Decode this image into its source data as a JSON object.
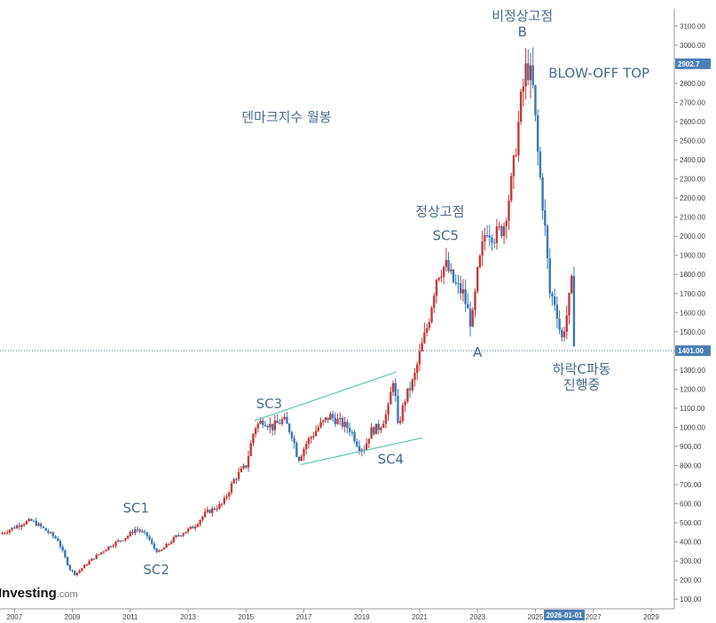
{
  "watermark": {
    "brand": "Investing",
    "suffix": ".com"
  },
  "chart_data": {
    "type": "candlestick",
    "x_axis": {
      "range": [
        2006.5,
        2029.8
      ],
      "ticks": [
        "2007",
        "2009",
        "2011",
        "2013",
        "2015",
        "2017",
        "2019",
        "2021",
        "2023",
        "2025",
        "2027",
        "2029"
      ],
      "tick_years": [
        2007,
        2009,
        2011,
        2013,
        2015,
        2017,
        2019,
        2021,
        2023,
        2025,
        2027,
        2029
      ]
    },
    "y_axis": {
      "position": "right",
      "range": [
        50,
        3190
      ],
      "ticks": [
        "100.00",
        "200.00",
        "300.00",
        "400.00",
        "500.00",
        "600.00",
        "700.00",
        "800.00",
        "900.00",
        "1000.00",
        "1100.00",
        "1200.00",
        "1300.00",
        "1400.00",
        "1500.00",
        "1600.00",
        "1700.00",
        "1800.00",
        "1900.00",
        "2000.00",
        "2100.00",
        "2200.00",
        "2300.00",
        "2400.00",
        "2500.00",
        "2600.00",
        "2700.00",
        "2800.00",
        "2900.00",
        "3000.00",
        "3100.00"
      ],
      "tick_values": [
        100,
        200,
        300,
        400,
        500,
        600,
        700,
        800,
        900,
        1000,
        1100,
        1200,
        1300,
        1400,
        1500,
        1600,
        1700,
        1800,
        1900,
        2000,
        2100,
        2200,
        2300,
        2400,
        2500,
        2600,
        2700,
        2800,
        2900,
        3000,
        3100
      ]
    },
    "current_price": {
      "value": 1401.0,
      "label": "1401.00"
    },
    "peak_label": {
      "value": 2902.7,
      "label": "2902.7"
    },
    "current_date_label": "2026-01-01",
    "series_colors": {
      "up": "#c23a3a",
      "down": "#3a78b5",
      "trend": "#5fc3b0",
      "price_line": "#4a6a8a"
    },
    "price_path": [
      [
        2006.5,
        440
      ],
      [
        2007.3,
        500
      ],
      [
        2007.6,
        510
      ],
      [
        2008.0,
        470
      ],
      [
        2008.5,
        410
      ],
      [
        2008.9,
        260
      ],
      [
        2009.1,
        230
      ],
      [
        2009.6,
        300
      ],
      [
        2010.3,
        380
      ],
      [
        2010.9,
        430
      ],
      [
        2011.2,
        470
      ],
      [
        2011.6,
        430
      ],
      [
        2011.8,
        370
      ],
      [
        2012.0,
        345
      ],
      [
        2012.6,
        430
      ],
      [
        2013.2,
        480
      ],
      [
        2013.6,
        550
      ],
      [
        2014.2,
        600
      ],
      [
        2014.6,
        730
      ],
      [
        2015.0,
        800
      ],
      [
        2015.3,
        1000
      ],
      [
        2015.6,
        1040
      ],
      [
        2015.9,
        1000
      ],
      [
        2016.3,
        1040
      ],
      [
        2016.6,
        960
      ],
      [
        2016.8,
        830
      ],
      [
        2017.1,
        920
      ],
      [
        2017.5,
        1000
      ],
      [
        2017.9,
        1060
      ],
      [
        2018.3,
        1020
      ],
      [
        2018.6,
        990
      ],
      [
        2018.9,
        900
      ],
      [
        2019.1,
        890
      ],
      [
        2019.3,
        980
      ],
      [
        2019.6,
        1000
      ],
      [
        2019.9,
        1080
      ],
      [
        2020.1,
        1270
      ],
      [
        2020.25,
        1000
      ],
      [
        2020.5,
        1150
      ],
      [
        2020.8,
        1250
      ],
      [
        2021.0,
        1380
      ],
      [
        2021.3,
        1550
      ],
      [
        2021.6,
        1800
      ],
      [
        2021.9,
        1850
      ],
      [
        2022.2,
        1750
      ],
      [
        2022.5,
        1700
      ],
      [
        2022.8,
        1530
      ],
      [
        2023.0,
        1800
      ],
      [
        2023.3,
        2050
      ],
      [
        2023.6,
        2000
      ],
      [
        2023.9,
        2050
      ],
      [
        2024.2,
        2300
      ],
      [
        2024.5,
        2700
      ],
      [
        2024.7,
        2900
      ],
      [
        2024.9,
        2800
      ],
      [
        2025.1,
        2400
      ],
      [
        2025.3,
        2100
      ],
      [
        2025.5,
        1700
      ],
      [
        2025.7,
        1650
      ],
      [
        2025.9,
        1450
      ],
      [
        2026.1,
        1600
      ],
      [
        2026.25,
        1750
      ],
      [
        2026.35,
        1401
      ]
    ],
    "annotations": [
      {
        "text": "덴마크지수 월봉",
        "x": 2016.4,
        "y": 2600
      },
      {
        "text": "비정상고점",
        "x": 2024.55,
        "y": 3130
      },
      {
        "text": "B",
        "x": 2024.55,
        "y": 3045
      },
      {
        "text": "BLOW-OFF TOP",
        "x": 2027.2,
        "y": 2830
      },
      {
        "text": "정상고점",
        "x": 2021.7,
        "y": 2105
      },
      {
        "text": "SC5",
        "x": 2021.9,
        "y": 1980
      },
      {
        "text": "A",
        "x": 2023.0,
        "y": 1370
      },
      {
        "text": "하락C파동",
        "x": 2026.6,
        "y": 1280
      },
      {
        "text": "진행중",
        "x": 2026.6,
        "y": 1200
      },
      {
        "text": "SC3",
        "x": 2015.8,
        "y": 1100
      },
      {
        "text": "SC4",
        "x": 2020.0,
        "y": 810
      },
      {
        "text": "SC1",
        "x": 2011.2,
        "y": 555
      },
      {
        "text": "SC2",
        "x": 2011.9,
        "y": 230
      }
    ],
    "trend_lines": [
      {
        "from": [
          2015.3,
          1035
        ],
        "to": [
          2020.2,
          1290
        ]
      },
      {
        "from": [
          2016.9,
          805
        ],
        "to": [
          2021.1,
          945
        ]
      }
    ],
    "grid": false
  }
}
